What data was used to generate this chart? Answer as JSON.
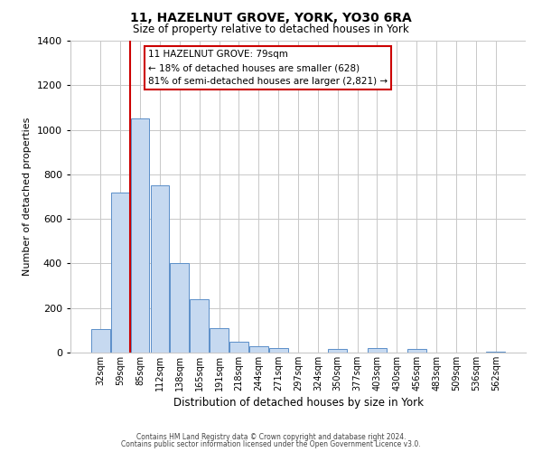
{
  "title": "11, HAZELNUT GROVE, YORK, YO30 6RA",
  "subtitle": "Size of property relative to detached houses in York",
  "xlabel": "Distribution of detached houses by size in York",
  "ylabel": "Number of detached properties",
  "bar_labels": [
    "32sqm",
    "59sqm",
    "85sqm",
    "112sqm",
    "138sqm",
    "165sqm",
    "191sqm",
    "218sqm",
    "244sqm",
    "271sqm",
    "297sqm",
    "324sqm",
    "350sqm",
    "377sqm",
    "403sqm",
    "430sqm",
    "456sqm",
    "483sqm",
    "509sqm",
    "536sqm",
    "562sqm"
  ],
  "bar_values": [
    107,
    720,
    1050,
    750,
    400,
    240,
    110,
    47,
    28,
    20,
    0,
    0,
    15,
    0,
    20,
    0,
    17,
    0,
    0,
    0,
    5
  ],
  "bar_color": "#c6d9f0",
  "bar_edge_color": "#5b8fc9",
  "ylim": [
    0,
    1400
  ],
  "yticks": [
    0,
    200,
    400,
    600,
    800,
    1000,
    1200,
    1400
  ],
  "vline_x": 1.5,
  "vline_color": "#cc0000",
  "annotation_title": "11 HAZELNUT GROVE: 79sqm",
  "annotation_line1": "← 18% of detached houses are smaller (628)",
  "annotation_line2": "81% of semi-detached houses are larger (2,821) →",
  "annotation_box_color": "#cc0000",
  "footer1": "Contains HM Land Registry data © Crown copyright and database right 2024.",
  "footer2": "Contains public sector information licensed under the Open Government Licence v3.0.",
  "background_color": "#ffffff",
  "grid_color": "#c8c8c8"
}
